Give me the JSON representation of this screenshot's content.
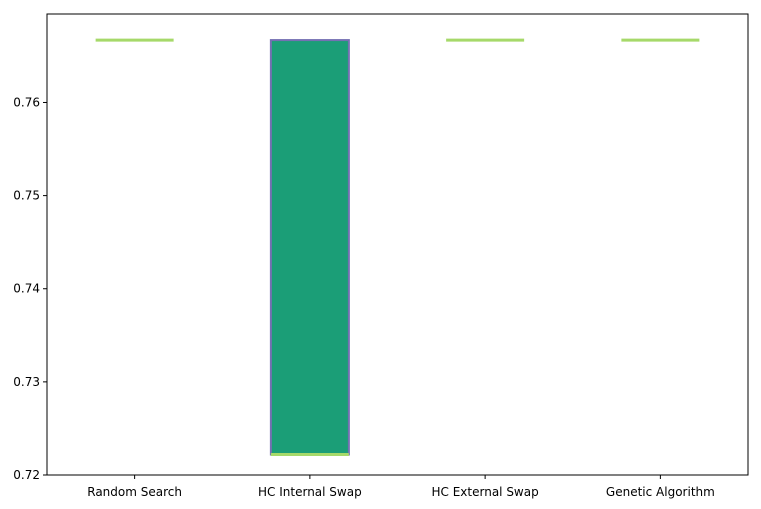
{
  "chart_data": {
    "type": "box",
    "categories": [
      "Random Search",
      "HC Internal Swap",
      "HC External Swap",
      "Genetic Algorithm"
    ],
    "series": [
      {
        "boxes": [
          {
            "q1": 0.7667,
            "median": 0.7667,
            "q3": 0.7667
          },
          {
            "q1": 0.7222,
            "median": 0.7222,
            "q3": 0.7667
          },
          {
            "q1": 0.7667,
            "median": 0.7667,
            "q3": 0.7667
          },
          {
            "q1": 0.7667,
            "median": 0.7667,
            "q3": 0.7667
          }
        ]
      }
    ],
    "ylim": [
      0.72,
      0.7695
    ],
    "yticks": [
      0.72,
      0.73,
      0.74,
      0.75,
      0.76
    ],
    "ytick_labels": [
      "0.72",
      "0.73",
      "0.74",
      "0.75",
      "0.76"
    ],
    "grid": false,
    "colors": {
      "box_fill": "#1b9e77",
      "box_edge": "#7570b3",
      "median": "#a6d96a"
    }
  }
}
